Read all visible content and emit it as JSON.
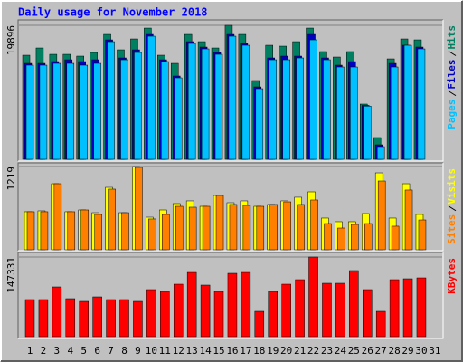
{
  "chart_data": [
    {
      "type": "bar",
      "title": "Daily usage for November 2018",
      "ylim": [
        0,
        19896
      ],
      "yticks": [
        19896
      ],
      "series": [
        {
          "name": "Hits",
          "color": "#008060",
          "values": [
            15456,
            16531,
            15590,
            15590,
            15322,
            15859,
            18547,
            16262,
            17875,
            19488,
            15456,
            14246,
            18547,
            17472,
            16531,
            19896,
            18547,
            11693,
            16934,
            16800,
            17472,
            19488,
            15994,
            15187,
            15994,
            8200,
            3226,
            14918,
            17875,
            17741,
            null
          ]
        },
        {
          "name": "Files",
          "color": "#0000c0",
          "values": [
            14246,
            14246,
            14515,
            14784,
            14515,
            14784,
            17741,
            15053,
            16262,
            18547,
            14784,
            12365,
            17472,
            16666,
            15859,
            18547,
            17203,
            10752,
            15053,
            15322,
            15322,
            18547,
            15053,
            13978,
            14515,
            8000,
            2150,
            14246,
            16934,
            16666,
            null
          ]
        },
        {
          "name": "Pages",
          "color": "#00c0ff",
          "values": [
            13978,
            13978,
            14246,
            14246,
            13978,
            14246,
            17472,
            14784,
            15859,
            18278,
            14515,
            12096,
            17203,
            16397,
            15590,
            18278,
            16934,
            10483,
            14784,
            14784,
            15053,
            17741,
            14784,
            13709,
            13709,
            7900,
            1882,
            13709,
            16934,
            16397,
            null
          ]
        }
      ]
    },
    {
      "type": "bar",
      "ylim": [
        0,
        1219
      ],
      "yticks": [
        1219
      ],
      "series": [
        {
          "name": "Visits",
          "color": "#ffff00",
          "values": [
            557,
            570,
            967,
            557,
            583,
            543,
            914,
            543,
            1219,
            477,
            583,
            676,
            716,
            636,
            795,
            689,
            716,
            636,
            663,
            716,
            769,
            848,
            464,
            411,
            411,
            530,
            1126,
            464,
            967,
            517,
            null
          ]
        },
        {
          "name": "Sites",
          "color": "#ff8000",
          "values": [
            557,
            557,
            967,
            557,
            583,
            517,
            888,
            543,
            1206,
            451,
            517,
            636,
            623,
            636,
            795,
            663,
            649,
            636,
            663,
            702,
            663,
            729,
            384,
            318,
            371,
            384,
            1007,
            345,
            875,
            437,
            null
          ]
        }
      ]
    },
    {
      "type": "bar",
      "ylim": [
        0,
        147331
      ],
      "yticks": [
        147331
      ],
      "categories": [
        "1",
        "2",
        "3",
        "4",
        "5",
        "6",
        "7",
        "8",
        "9",
        "10",
        "11",
        "12",
        "13",
        "14",
        "15",
        "16",
        "17",
        "18",
        "19",
        "20",
        "21",
        "22",
        "23",
        "24",
        "25",
        "26",
        "27",
        "28",
        "29",
        "30",
        "31"
      ],
      "series": [
        {
          "name": "KBytes",
          "color": "#ff0000",
          "values": [
            68634,
            68634,
            92070,
            70308,
            65286,
            73656,
            68634,
            68634,
            65286,
            87048,
            83700,
            97092,
            118854,
            95418,
            83700,
            117180,
            118854,
            46872,
            83700,
            97092,
            105462,
            147331,
            98766,
            98766,
            122202,
            87048,
            46872,
            105462,
            107136,
            108810,
            null
          ]
        }
      ]
    }
  ]
}
